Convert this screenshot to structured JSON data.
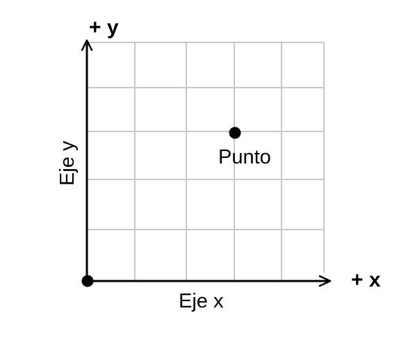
{
  "diagram": {
    "x_axis_end_label": "+ x",
    "y_axis_end_label": "+ y",
    "x_axis_label": "Eje x",
    "y_axis_label": "Eje y",
    "point_label": "Punto",
    "grid": {
      "columns": 5,
      "rows": 5
    },
    "points": [
      {
        "name": "origin",
        "col": 0,
        "row": 0
      },
      {
        "name": "punto",
        "col": 3,
        "row": 3
      }
    ]
  }
}
